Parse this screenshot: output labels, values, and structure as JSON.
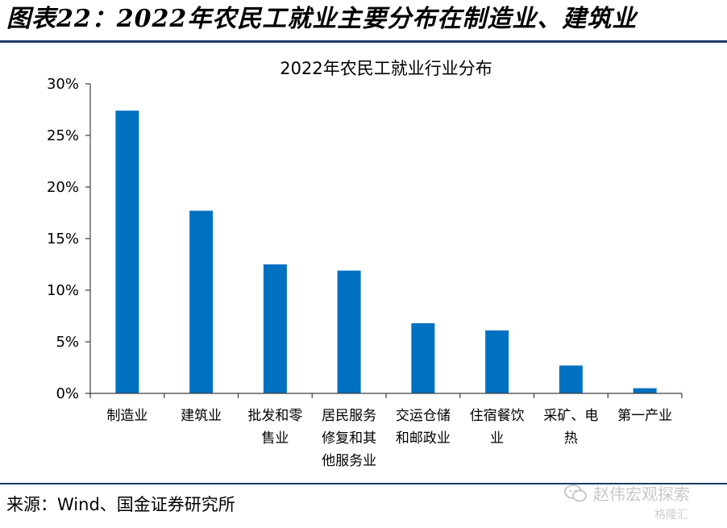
{
  "figure_title": "图表22：2022年农民工就业主要分布在制造业、建筑业",
  "source": "来源：Wind、国金证券研究所",
  "watermark": {
    "text": "赵伟宏观探索",
    "sub": "格隆汇",
    "icon": "wechat-icon"
  },
  "colors": {
    "bar": "#0070c0",
    "rule": "#1f3a6e",
    "axis": "#404040"
  },
  "chart_data": {
    "type": "bar",
    "title": "2022年农民工就业行业分布",
    "categories": [
      [
        "制造业"
      ],
      [
        "建筑业"
      ],
      [
        "批发和零",
        "售业"
      ],
      [
        "居民服务",
        "修复和其",
        "他服务业"
      ],
      [
        "交运仓储",
        "和邮政业"
      ],
      [
        "住宿餐饮",
        "业"
      ],
      [
        "采矿、电",
        "热"
      ],
      [
        "第一产业"
      ]
    ],
    "values": [
      27.4,
      17.7,
      12.5,
      11.9,
      6.8,
      6.1,
      2.7,
      0.5
    ],
    "ylim": [
      0,
      30
    ],
    "yticks": [
      "0%",
      "5%",
      "10%",
      "15%",
      "20%",
      "25%",
      "30%"
    ],
    "ytick_values": [
      0,
      5,
      10,
      15,
      20,
      25,
      30
    ],
    "xlabel": "",
    "ylabel": "",
    "grid": false,
    "legend": "none"
  }
}
